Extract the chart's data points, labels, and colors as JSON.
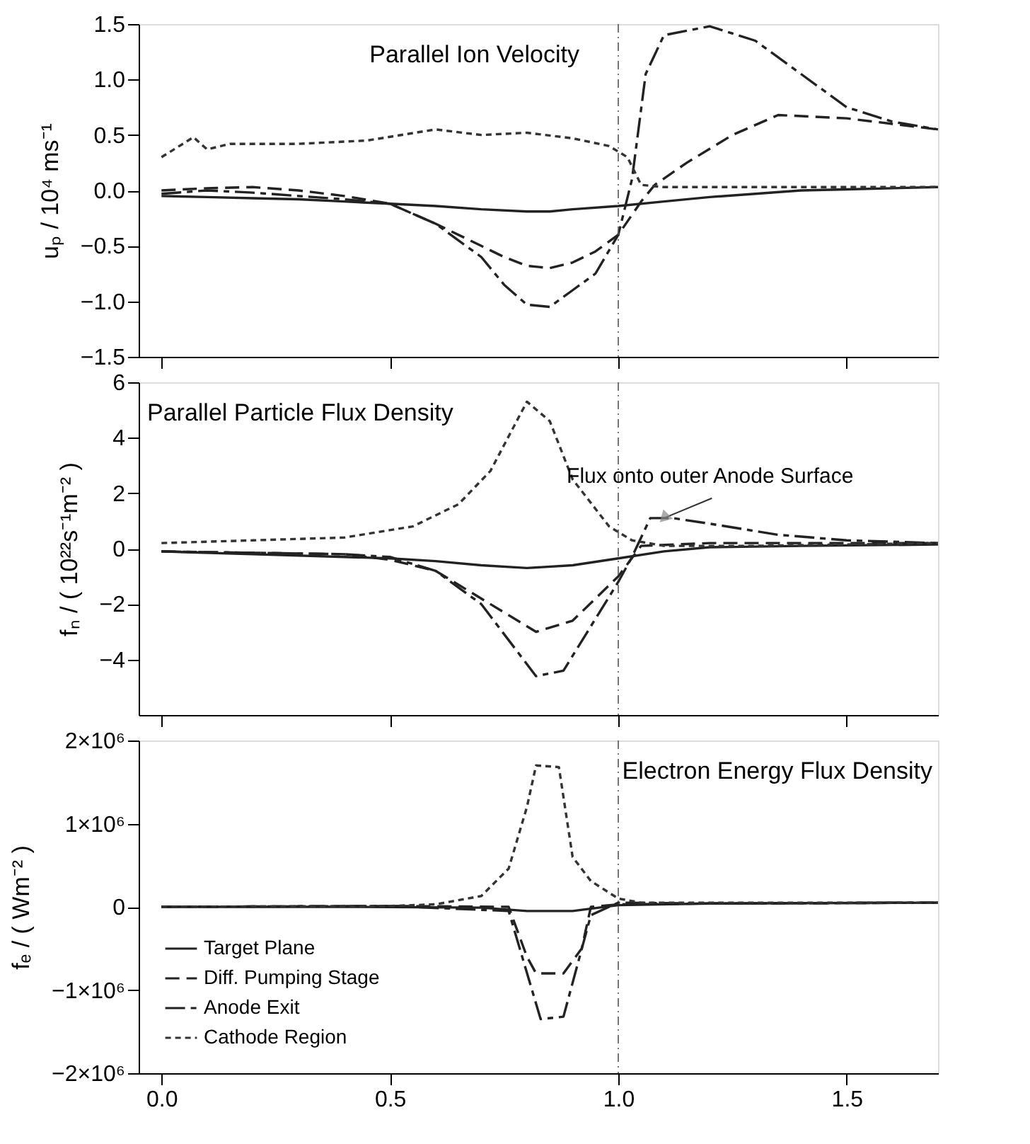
{
  "chart_data": [
    {
      "type": "line",
      "title": "Parallel Ion Velocity",
      "ylabel": "uₚ / 10⁴ ms⁻¹",
      "xlim": [
        -0.05,
        1.7
      ],
      "ylim": [
        -1.5,
        1.5
      ],
      "yticks": [
        {
          "value": -1.5,
          "label": "−1.5"
        },
        {
          "value": -1,
          "label": "−1.0"
        },
        {
          "value": -0.5,
          "label": "−0.5"
        },
        {
          "value": 0,
          "label": "0.0"
        },
        0.5,
        {
          "value": 1,
          "label": "1.0"
        },
        1.5
      ],
      "tick_labels": "y",
      "grid": false,
      "legend": false,
      "ref_lines": [
        {
          "axis": "x",
          "value": 1.0,
          "color": "#555555",
          "line_style": "dashed"
        }
      ],
      "series": [
        {
          "color": "#222222",
          "line_style": "solid",
          "x": [
            0,
            0.1,
            0.2,
            0.3,
            0.4,
            0.5,
            0.6,
            0.7,
            0.8,
            0.85,
            0.9,
            1.0,
            1.1,
            1.2,
            1.3,
            1.4,
            1.5,
            1.6,
            1.7
          ],
          "values": [
            -0.05,
            -0.06,
            -0.07,
            -0.08,
            -0.1,
            -0.12,
            -0.14,
            -0.17,
            -0.19,
            -0.19,
            -0.17,
            -0.14,
            -0.1,
            -0.06,
            -0.03,
            0.0,
            0.01,
            0.02,
            0.03
          ]
        },
        {
          "color": "#222222",
          "line_style": "dashed",
          "x": [
            0,
            0.1,
            0.2,
            0.3,
            0.4,
            0.5,
            0.6,
            0.7,
            0.75,
            0.8,
            0.85,
            0.9,
            0.95,
            1.0,
            1.05,
            1.08,
            1.15,
            1.25,
            1.35,
            1.5,
            1.6,
            1.7
          ],
          "values": [
            0.0,
            0.02,
            0.03,
            0.0,
            -0.05,
            -0.12,
            -0.3,
            -0.5,
            -0.6,
            -0.68,
            -0.7,
            -0.65,
            -0.55,
            -0.4,
            -0.1,
            0.05,
            0.25,
            0.5,
            0.68,
            0.65,
            0.6,
            0.55
          ]
        },
        {
          "color": "#222222",
          "line_style": "dashed",
          "x": [
            0,
            0.1,
            0.2,
            0.3,
            0.4,
            0.5,
            0.6,
            0.7,
            0.75,
            0.8,
            0.85,
            0.9,
            0.95,
            1.0,
            1.03,
            1.06,
            1.1,
            1.2,
            1.3,
            1.4,
            1.5,
            1.6,
            1.7
          ],
          "values": [
            -0.03,
            0.0,
            -0.02,
            -0.05,
            -0.08,
            -0.12,
            -0.3,
            -0.6,
            -0.85,
            -1.03,
            -1.05,
            -0.9,
            -0.75,
            -0.4,
            0.1,
            1.05,
            1.4,
            1.48,
            1.35,
            1.05,
            0.75,
            0.62,
            0.55
          ]
        },
        {
          "color": "#333333",
          "line_style": "dotted",
          "x": [
            0,
            0.07,
            0.1,
            0.15,
            0.3,
            0.45,
            0.6,
            0.7,
            0.8,
            0.9,
            0.98,
            1.02,
            1.05,
            1.1,
            1.3,
            1.5,
            1.7
          ],
          "values": [
            0.3,
            0.48,
            0.37,
            0.42,
            0.42,
            0.45,
            0.55,
            0.5,
            0.52,
            0.47,
            0.4,
            0.3,
            0.05,
            0.03,
            0.03,
            0.03,
            0.03
          ]
        }
      ]
    },
    {
      "type": "line",
      "title": "Parallel Particle Flux Density",
      "ylabel": "fₙ / ( 10²²s⁻¹m⁻² )",
      "xlim": [
        -0.05,
        1.7
      ],
      "ylim": [
        -6,
        6
      ],
      "yticks": [
        {
          "value": -4,
          "label": "−4"
        },
        {
          "value": -2,
          "label": "−2"
        },
        0,
        2,
        4,
        6
      ],
      "tick_labels": "y",
      "grid": false,
      "legend": false,
      "ref_lines": [
        {
          "axis": "x",
          "value": 1.0,
          "color": "#555555",
          "line_style": "dashed"
        }
      ],
      "series": [
        {
          "color": "#222222",
          "line_style": "solid",
          "x": [
            0,
            0.2,
            0.4,
            0.5,
            0.6,
            0.7,
            0.8,
            0.9,
            1.0,
            1.1,
            1.2,
            1.4,
            1.7
          ],
          "values": [
            -0.1,
            -0.2,
            -0.3,
            -0.35,
            -0.45,
            -0.6,
            -0.7,
            -0.6,
            -0.35,
            -0.1,
            0.05,
            0.1,
            0.15
          ]
        },
        {
          "color": "#222222",
          "line_style": "dashed",
          "x": [
            0,
            0.2,
            0.4,
            0.5,
            0.6,
            0.7,
            0.82,
            0.9,
            1.0,
            1.05,
            1.2,
            1.4,
            1.7
          ],
          "values": [
            -0.1,
            -0.15,
            -0.2,
            -0.4,
            -0.8,
            -1.8,
            -3.0,
            -2.6,
            -1.0,
            0.1,
            0.2,
            0.2,
            0.2
          ]
        },
        {
          "color": "#222222",
          "line_style": "dashed",
          "x": [
            0,
            0.2,
            0.4,
            0.5,
            0.6,
            0.7,
            0.82,
            0.88,
            1.0,
            1.03,
            1.07,
            1.12,
            1.2,
            1.35,
            1.5,
            1.7
          ],
          "values": [
            -0.1,
            -0.15,
            -0.2,
            -0.3,
            -0.8,
            -2.0,
            -4.6,
            -4.4,
            -1.2,
            -0.3,
            1.1,
            1.1,
            0.9,
            0.5,
            0.3,
            0.2
          ]
        },
        {
          "color": "#333333",
          "line_style": "dotted",
          "x": [
            0,
            0.2,
            0.4,
            0.55,
            0.65,
            0.72,
            0.8,
            0.85,
            0.9,
            0.98,
            1.03,
            1.1,
            1.3,
            1.7
          ],
          "values": [
            0.2,
            0.3,
            0.4,
            0.8,
            1.6,
            2.8,
            5.3,
            4.6,
            2.5,
            0.8,
            0.3,
            0.1,
            0.1,
            0.2
          ]
        }
      ],
      "annotations": [
        {
          "text": "Flux onto outer Anode Surface",
          "x": 1.1,
          "y": 1.1
        }
      ]
    },
    {
      "type": "line",
      "title": "Electron Energy Flux Density",
      "ylabel": "fₑ / ( Wm⁻² )",
      "xlim": [
        -0.05,
        1.7
      ],
      "xticks": [
        {
          "value": 0,
          "label": "0.0"
        },
        0.5,
        {
          "value": 1,
          "label": "1.0"
        },
        1.5
      ],
      "ylim": [
        -2000000,
        2000000
      ],
      "yticks": [
        {
          "value": -2000000,
          "label": "−2×10⁶"
        },
        {
          "value": -1000000,
          "label": "−1×10⁶"
        },
        0,
        {
          "value": 1000000,
          "label": "1×10⁶"
        },
        {
          "value": 2000000,
          "label": "2×10⁶"
        }
      ],
      "grid": false,
      "legend": "bottom left",
      "ref_lines": [
        {
          "axis": "x",
          "value": 1.0,
          "color": "#555555",
          "line_style": "dashed"
        }
      ],
      "series": [
        {
          "name": "Target Plane",
          "color": "#222222",
          "line_style": "solid",
          "x": [
            0,
            0.4,
            0.7,
            0.8,
            0.9,
            1.0,
            1.2,
            1.7
          ],
          "values": [
            0,
            0,
            -10000,
            -50000,
            -50000,
            20000,
            40000,
            50000
          ]
        },
        {
          "name": "Diff. Pumping Stage",
          "color": "#222222",
          "line_style": "dashed",
          "x": [
            0,
            0.5,
            0.76,
            0.8,
            0.82,
            0.88,
            0.92,
            0.94,
            1.0,
            1.2,
            1.7
          ],
          "values": [
            0,
            10000,
            0,
            -600000,
            -800000,
            -800000,
            -500000,
            0,
            30000,
            40000,
            50000
          ]
        },
        {
          "name": "Anode Exit",
          "color": "#222222",
          "line_style": "dashed",
          "x": [
            0,
            0.5,
            0.76,
            0.83,
            0.88,
            0.94,
            1.0,
            1.2,
            1.7
          ],
          "values": [
            0,
            10000,
            -50000,
            -1350000,
            -1320000,
            -100000,
            50000,
            40000,
            50000
          ]
        },
        {
          "name": "Cathode Region",
          "color": "#333333",
          "line_style": "dotted",
          "x": [
            0,
            0.5,
            0.6,
            0.7,
            0.76,
            0.8,
            0.82,
            0.87,
            0.9,
            0.94,
            1.0,
            1.05,
            1.7
          ],
          "values": [
            0,
            10000,
            30000,
            130000,
            460000,
            1200000,
            1700000,
            1680000,
            600000,
            310000,
            100000,
            50000,
            50000
          ]
        }
      ]
    }
  ]
}
